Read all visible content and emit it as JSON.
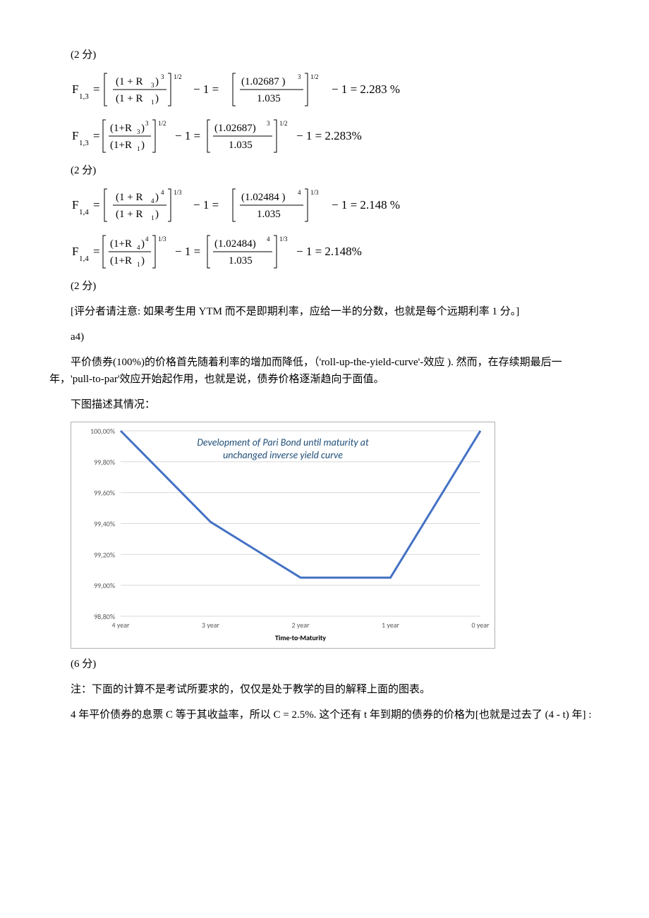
{
  "scores": {
    "s2": "(2 分)",
    "s6": "(6 分)"
  },
  "formulas": {
    "f13": {
      "lhs": "F",
      "sub": "1,3",
      "numL": "(1 + R₃)",
      "expNumL": "3",
      "denL": "(1 + R₁)",
      "rootL": "1/2",
      "numR": "(1.02687)",
      "expNumR": "3",
      "denR": "1.035",
      "rootR": "1/2",
      "result": "2.283%",
      "resultWide": "2.283 %"
    },
    "f14": {
      "lhs": "F",
      "sub": "1,4",
      "numL": "(1 + R₄)",
      "expNumL": "4",
      "denL": "(1 + R₁)",
      "rootL": "1/3",
      "numR": "(1.02484)",
      "expNumR": "4",
      "denR": "1.035",
      "rootR": "1/3",
      "result": "2.148%",
      "resultWide": "2.148 %"
    }
  },
  "paragraphs": {
    "p1": "[评分者请注意: 如果考生用 YTM 而不是即期利率，应给一半的分数，也就是每个远期利率 1 分。]",
    "p2": "a4)",
    "p3": "平价债券(100%)的价格首先随着利率的增加而降低，（'roll-up-the-yield-curve'-效应 ). 然而，在存续期最后一年，'pull-to-par'效应开始起作用，也就是说，债券价格逐渐趋向于面值。",
    "p4": "下图描述其情况：",
    "p5": "注：下面的计算不是考试所要求的，仅仅是处于教学的目的解释上面的图表。",
    "p6": "4 年平价债券的息票 C 等于其收益率，所以 C = 2.5%. 这个还有 t 年到期的债券的价格为[也就是过去了 (4 - t) 年] :"
  },
  "chart": {
    "title_l1": "Development of Pari Bond until maturity at",
    "title_l2": "unchanged inverse yield curve",
    "xlabel": "Time-to-Maturity",
    "categories": [
      "4  year",
      "3  year",
      "2  year",
      "1  year",
      "0  year"
    ],
    "values": [
      100.0,
      99.41,
      99.05,
      99.05,
      100.0
    ],
    "ylim": [
      98.8,
      100.0
    ],
    "ytick_step": 0.2,
    "yticks": [
      "98,80%",
      "99,00%",
      "99,20%",
      "99,40%",
      "99,60%",
      "99,80%",
      "100,00%"
    ],
    "line_color": "#4472c4",
    "grid_color": "#d9d9d9",
    "background_color": "#ffffff",
    "title_color": "#1f4e79",
    "line_width": 3,
    "title_fontsize": 14,
    "label_fontsize": 10,
    "tick_fontsize": 10
  }
}
